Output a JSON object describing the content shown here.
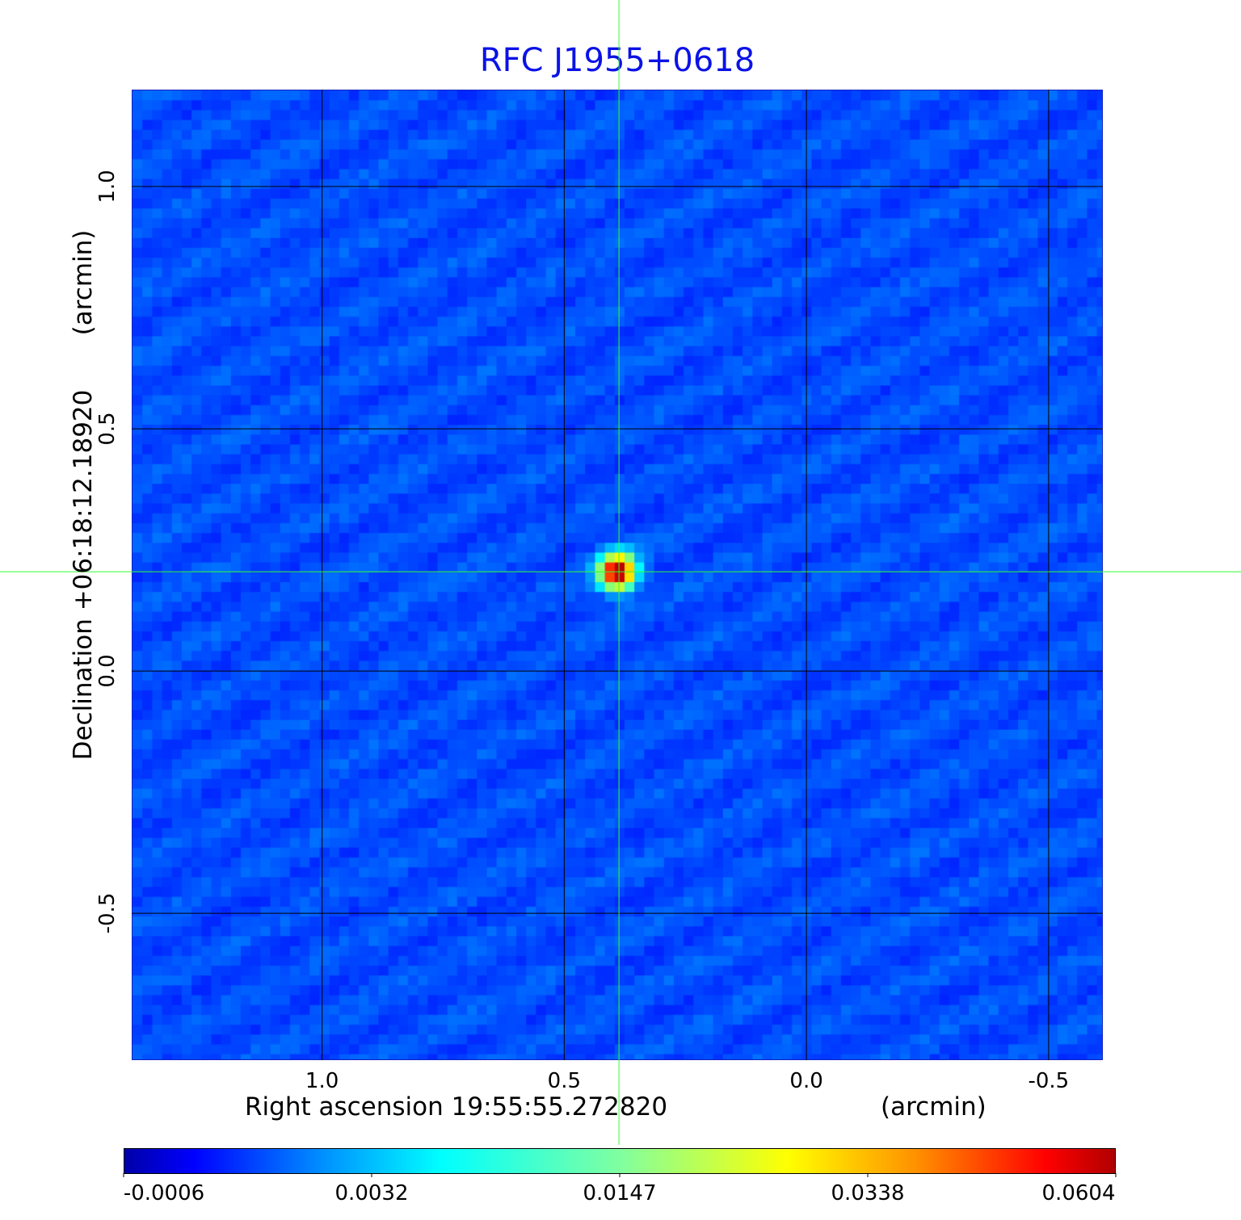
{
  "chart_data": {
    "type": "heatmap",
    "title": "RFC J1955+0618",
    "xlabel": "Right ascension  19:55:55.272820",
    "xunit": "(arcmin)",
    "ylabel": "Declination  +06:18:12.18920",
    "yunit": "(arcmin)",
    "xlim": [
      1.393,
      -0.612
    ],
    "ylim": [
      -0.803,
      1.2
    ],
    "xticks": [
      {
        "value": 1.0,
        "label": "1.0"
      },
      {
        "value": 0.5,
        "label": "0.5"
      },
      {
        "value": 0.0,
        "label": "0.0"
      },
      {
        "value": -0.5,
        "label": "-0.5"
      }
    ],
    "yticks": [
      {
        "value": 1.0,
        "label": "1.0"
      },
      {
        "value": 0.5,
        "label": "0.5"
      },
      {
        "value": 0.0,
        "label": "0.0"
      },
      {
        "value": -0.5,
        "label": "-0.5"
      }
    ],
    "grid": true,
    "crosshair": {
      "x": 0.387,
      "y": 0.205
    },
    "source_peak": {
      "x": 0.39,
      "y": 0.205,
      "value": 0.0604
    },
    "colormap": "jet",
    "colorbar": {
      "placement": "bottom",
      "ticks": [
        "-0.0006",
        "0.0032",
        "0.0147",
        "0.0338",
        "0.0604"
      ],
      "range": [
        -0.0006,
        0.0604
      ]
    },
    "colors": {
      "title": "#0b12e6",
      "crosshair": "#33ff33",
      "grid": "#000000"
    }
  }
}
